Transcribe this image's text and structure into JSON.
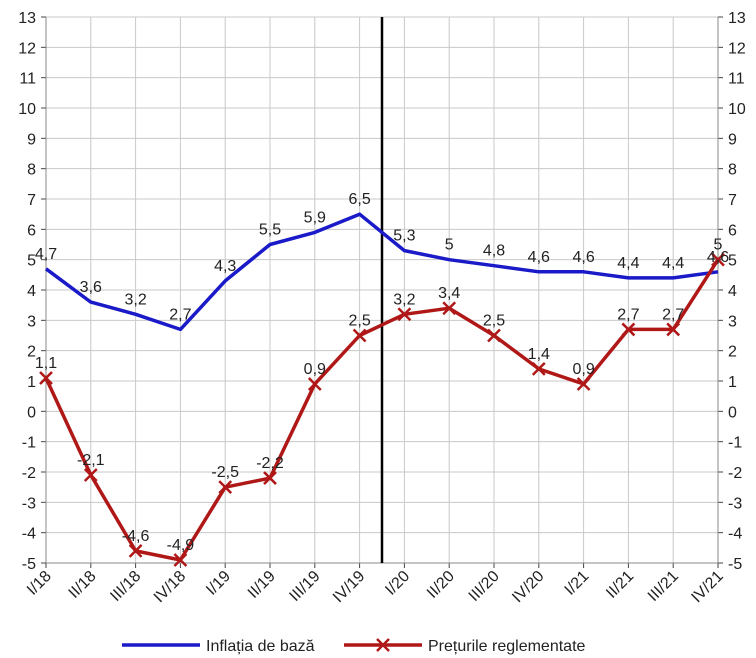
{
  "chart_data": {
    "type": "line",
    "x": [
      "I/18",
      "II/18",
      "III/18",
      "IV/18",
      "I/19",
      "II/19",
      "III/19",
      "IV/19",
      "I/20",
      "II/20",
      "III/20",
      "IV/20",
      "I/21",
      "II/21",
      "III/21",
      "IV/21"
    ],
    "ylim": [
      -5,
      13
    ],
    "yticks": [
      -5,
      -4,
      -3,
      -2,
      -1,
      0,
      1,
      2,
      3,
      4,
      5,
      6,
      7,
      8,
      9,
      10,
      11,
      12,
      13
    ],
    "grid": true,
    "vertical_marker_between": [
      "IV/19",
      "I/20"
    ],
    "legend_position": "bottom",
    "series": [
      {
        "name": "Inflația de bază",
        "color": "#1a1ac8",
        "marker": "none",
        "values": [
          4.7,
          3.6,
          3.2,
          2.7,
          4.3,
          5.5,
          5.9,
          6.5,
          5.3,
          5.0,
          4.8,
          4.6,
          4.6,
          4.4,
          4.4,
          4.6
        ],
        "labels": [
          "4,7",
          "3,6",
          "3,2",
          "2,7",
          "4,3",
          "5,5",
          "5,9",
          "6,5",
          "5,3",
          "5",
          "4,8",
          "4,6",
          "4,6",
          "4,4",
          "4,4",
          "4,6"
        ]
      },
      {
        "name": "Prețurile reglementate",
        "color": "#b01818",
        "marker": "x",
        "values": [
          1.1,
          -2.1,
          -4.6,
          -4.9,
          -2.5,
          -2.2,
          0.9,
          2.5,
          3.2,
          3.4,
          2.5,
          1.4,
          0.9,
          2.7,
          2.7,
          5.0
        ],
        "labels": [
          "1,1",
          "-2,1",
          "-4,6",
          "-4,9",
          "-2,5",
          "-2,2",
          "0,9",
          "2,5",
          "3,2",
          "3,4",
          "2,5",
          "1,4",
          "0,9",
          "2,7",
          "2,7",
          "5"
        ]
      }
    ]
  }
}
